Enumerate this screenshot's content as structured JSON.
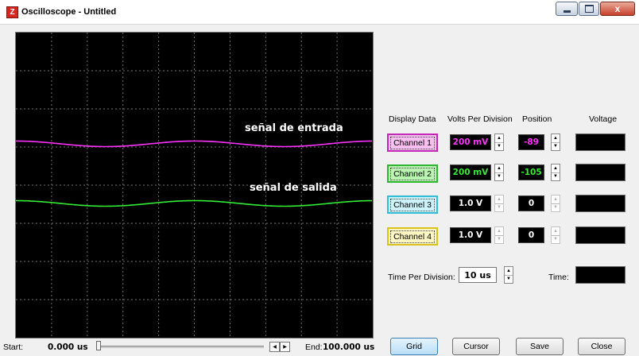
{
  "window": {
    "title": "Oscilloscope - Untitled",
    "app_icon": "Z",
    "close_glyph": "x"
  },
  "scope": {
    "background": "#000000",
    "grid_color": "#6e6e6e",
    "grid": "on",
    "divisions_x": 10,
    "divisions_y": 8,
    "traces": [
      {
        "name": "Channel 1",
        "color": "#ff33ff",
        "label": "señal de entrada"
      },
      {
        "name": "Channel 2",
        "color": "#33ee33",
        "label": "señal de salida"
      }
    ]
  },
  "panel": {
    "headers": {
      "display_data": "Display Data",
      "volts_per_division": "Volts Per Division",
      "position": "Position",
      "voltage": "Voltage"
    },
    "channels": [
      {
        "label": "Channel 1",
        "volts": "200 mV",
        "position": "-89",
        "enabled": true,
        "color": "#ff33ff",
        "button_bg": "#f7bff0",
        "button_border": "#c428b8"
      },
      {
        "label": "Channel 2",
        "volts": "200 mV",
        "position": "-105",
        "enabled": true,
        "color": "#33ee33",
        "button_bg": "#b9f5b0",
        "button_border": "#2fb52f"
      },
      {
        "label": "Channel 3",
        "volts": "1.0 V",
        "position": "0",
        "enabled": false,
        "color": "#ffffff",
        "button_bg": "#ccf2fb",
        "button_border": "#33bcd6"
      },
      {
        "label": "Channel 4",
        "volts": "1.0 V",
        "position": "0",
        "enabled": false,
        "color": "#ffffff",
        "button_bg": "#fff6c4",
        "button_border": "#d9c21c"
      }
    ],
    "time_per_division_label": "Time Per Division:",
    "time_per_division": "10 us",
    "time_label": "Time:"
  },
  "footer": {
    "start_label": "Start:",
    "start_value": "0.000 us",
    "end_label": "End:",
    "end_value": "100.000 us",
    "slider_position": 0
  },
  "buttons": {
    "grid": "Grid",
    "cursor": "Cursor",
    "save": "Save",
    "close": "Close"
  }
}
